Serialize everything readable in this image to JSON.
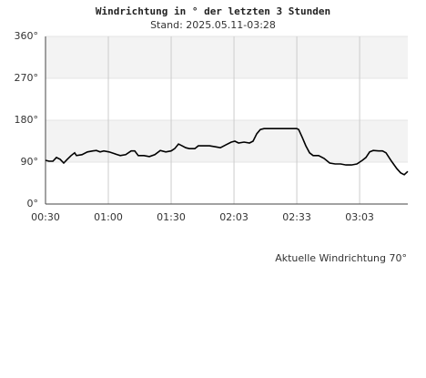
{
  "chart_data": {
    "type": "line",
    "title": "Windrichtung in ° der letzten 3 Stunden",
    "subtitle": "Stand: 2025.05.11-03:28",
    "annotation": "Aktuelle Windrichtung 70°",
    "x": [
      0,
      1.7,
      3.5,
      5.2,
      7,
      8.7,
      10.4,
      12.2,
      13.9,
      14.8,
      17.4,
      20,
      22.6,
      24.3,
      26.1,
      27.8,
      30.4,
      33,
      35.7,
      38.3,
      40.9,
      42.6,
      44.3,
      47,
      49.6,
      52.2,
      54.8,
      57.4,
      60,
      61.7,
      63.5,
      65.2,
      67,
      68.7,
      71.3,
      73,
      75.7,
      78.3,
      80.9,
      83.5,
      86.1,
      88.7,
      90.4,
      92.2,
      94.8,
      97.4,
      99.1,
      100.9,
      102.6,
      104.3,
      108.7,
      113,
      117.4,
      120,
      120.9,
      122.6,
      124.3,
      126.1,
      127.8,
      130.4,
      133,
      135.7,
      138.3,
      140.9,
      143.5,
      146.1,
      148.7,
      151.3,
      153,
      154.8,
      156.5,
      159.1,
      160.9,
      162.6,
      165.2,
      167.8,
      169.6,
      171.3,
      173
    ],
    "series": [
      {
        "name": "Windrichtung",
        "color": "#000000",
        "values": [
          94,
          92,
          92,
          100,
          96,
          88,
          96,
          104,
          110,
          104,
          106,
          112,
          114,
          115,
          112,
          114,
          112,
          108,
          104,
          106,
          114,
          114,
          104,
          104,
          102,
          106,
          115,
          112,
          114,
          119,
          129,
          125,
          121,
          119,
          119,
          125,
          125,
          125,
          123,
          121,
          127,
          133,
          135,
          131,
          133,
          131,
          135,
          151,
          160,
          162,
          162,
          162,
          162,
          162,
          160,
          143,
          125,
          110,
          104,
          104,
          98,
          88,
          86,
          86,
          84,
          84,
          86,
          94,
          100,
          112,
          115,
          114,
          114,
          110,
          92,
          76,
          67,
          63,
          70
        ]
      }
    ],
    "xlim": [
      0,
      173
    ],
    "xticks": [
      {
        "value": 0,
        "label": "00:30"
      },
      {
        "value": 30,
        "label": "01:00"
      },
      {
        "value": 60,
        "label": "01:30"
      },
      {
        "value": 90,
        "label": "02:03"
      },
      {
        "value": 120,
        "label": "02:33"
      },
      {
        "value": 150,
        "label": "03:03"
      }
    ],
    "ylim": [
      0,
      360
    ],
    "yticks": [
      {
        "value": 0,
        "label": "0°"
      },
      {
        "value": 90,
        "label": "90°"
      },
      {
        "value": 180,
        "label": "180°"
      },
      {
        "value": 270,
        "label": "270°"
      },
      {
        "value": 360,
        "label": "360°"
      }
    ],
    "grid": true
  }
}
